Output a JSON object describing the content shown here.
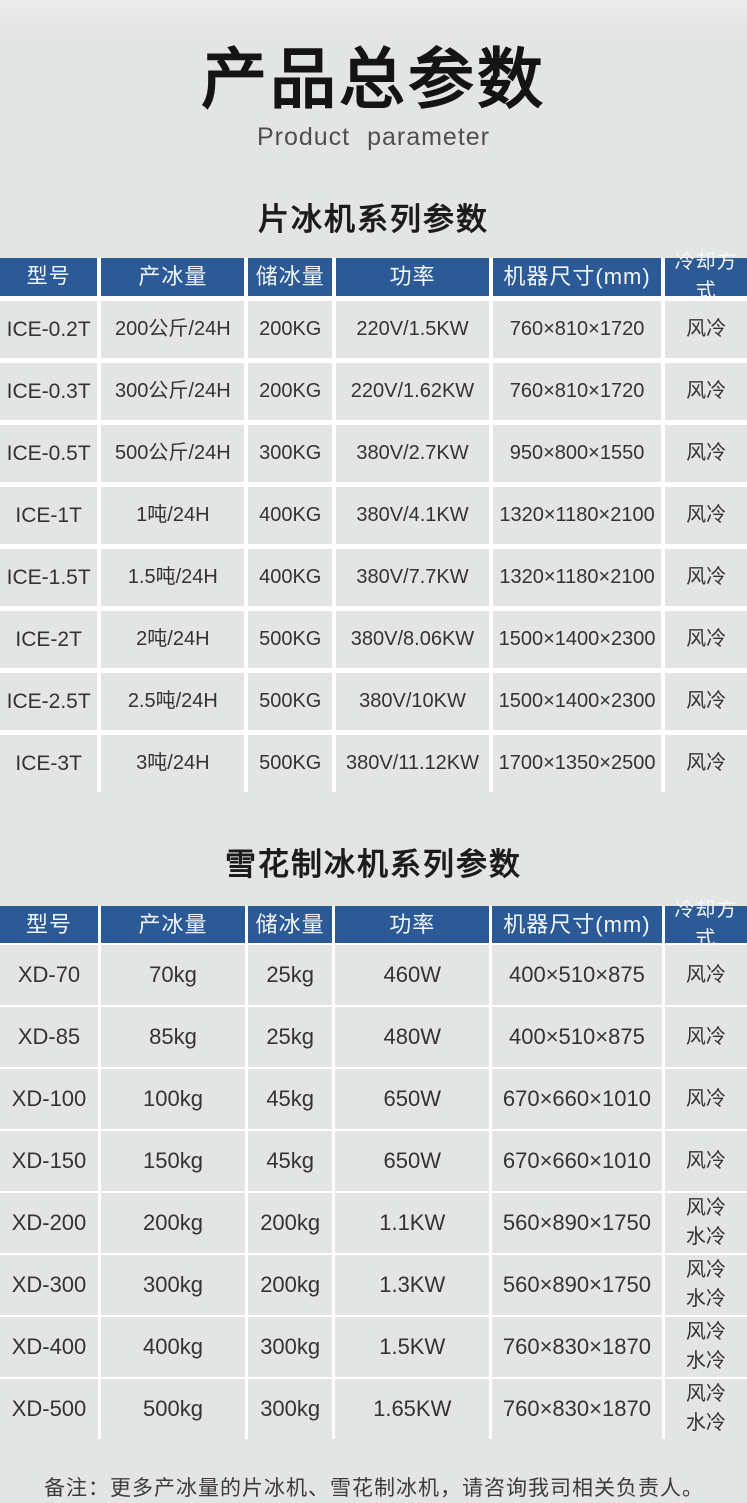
{
  "page": {
    "title": "产品总参数",
    "subtitle": "Product  parameter",
    "note": "备注：更多产冰量的片冰机、雪花制冰机，请咨询我司相关负责人。"
  },
  "colors": {
    "header_bg": "#2c5a96",
    "header_text": "#f3f6fb",
    "cell_bg": "#e3e4e4",
    "page_bg": "#e3e4e4",
    "page_bg_top": "#ebebeb",
    "text": "#333333"
  },
  "tables": [
    {
      "section_title": "片冰机系列参数",
      "headers": [
        "型号",
        "产冰量",
        "储冰量",
        "功率",
        "机器尺寸(mm)",
        "冷却方式"
      ],
      "rows": [
        [
          "ICE-0.2T",
          "200公斤/24H",
          "200KG",
          "220V/1.5KW",
          "760×810×1720",
          "风冷"
        ],
        [
          "ICE-0.3T",
          "300公斤/24H",
          "200KG",
          "220V/1.62KW",
          "760×810×1720",
          "风冷"
        ],
        [
          "ICE-0.5T",
          "500公斤/24H",
          "300KG",
          "380V/2.7KW",
          "950×800×1550",
          "风冷"
        ],
        [
          "ICE-1T",
          "1吨/24H",
          "400KG",
          "380V/4.1KW",
          "1320×1180×2100",
          "风冷"
        ],
        [
          "ICE-1.5T",
          "1.5吨/24H",
          "400KG",
          "380V/7.7KW",
          "1320×1180×2100",
          "风冷"
        ],
        [
          "ICE-2T",
          "2吨/24H",
          "500KG",
          "380V/8.06KW",
          "1500×1400×2300",
          "风冷"
        ],
        [
          "ICE-2.5T",
          "2.5吨/24H",
          "500KG",
          "380V/10KW",
          "1500×1400×2300",
          "风冷"
        ],
        [
          "ICE-3T",
          "3吨/24H",
          "500KG",
          "380V/11.12KW",
          "1700×1350×2500",
          "风冷"
        ]
      ]
    },
    {
      "section_title": "雪花制冰机系列参数",
      "headers": [
        "型号",
        "产冰量",
        "储冰量",
        "功率",
        "机器尺寸(mm)",
        "冷却方式"
      ],
      "rows": [
        [
          "XD-70",
          "70kg",
          "25kg",
          "460W",
          "400×510×875",
          "风冷"
        ],
        [
          "XD-85",
          "85kg",
          "25kg",
          "480W",
          "400×510×875",
          "风冷"
        ],
        [
          "XD-100",
          "100kg",
          "45kg",
          "650W",
          "670×660×1010",
          "风冷"
        ],
        [
          "XD-150",
          "150kg",
          "45kg",
          "650W",
          "670×660×1010",
          "风冷"
        ],
        [
          "XD-200",
          "200kg",
          "200kg",
          "1.1KW",
          "560×890×1750",
          "风冷\n水冷"
        ],
        [
          "XD-300",
          "300kg",
          "200kg",
          "1.3KW",
          "560×890×1750",
          "风冷\n水冷"
        ],
        [
          "XD-400",
          "400kg",
          "300kg",
          "1.5KW",
          "760×830×1870",
          "风冷\n水冷"
        ],
        [
          "XD-500",
          "500kg",
          "300kg",
          "1.65KW",
          "760×830×1870",
          "风冷\n水冷"
        ]
      ]
    }
  ]
}
